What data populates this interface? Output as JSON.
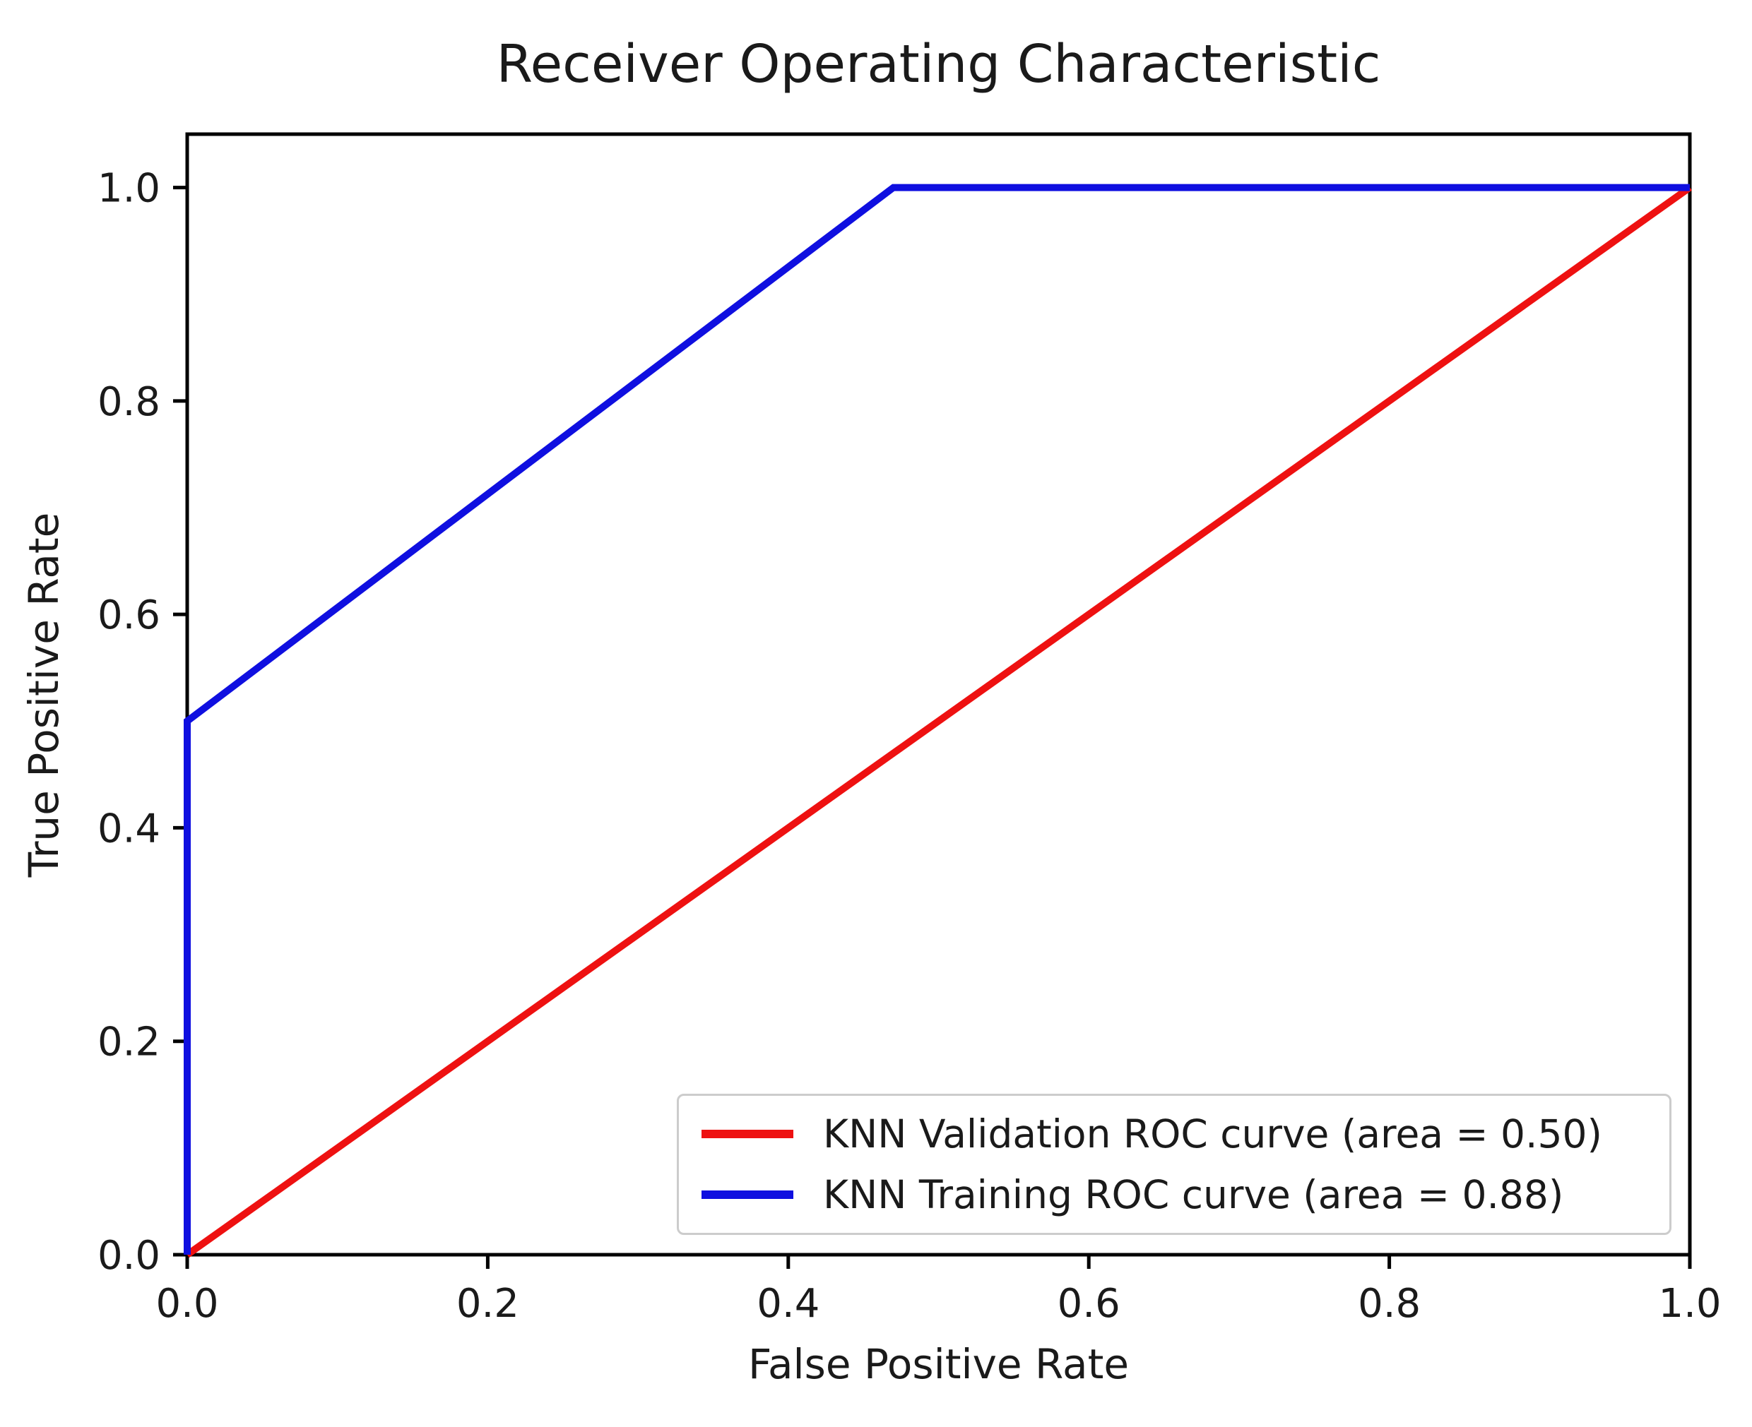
{
  "chart_data": {
    "type": "line",
    "title": "Receiver Operating Characteristic",
    "xlabel": "False Positive Rate",
    "ylabel": "True Positive Rate",
    "xlim": [
      0.0,
      1.0
    ],
    "ylim": [
      0.0,
      1.05
    ],
    "x_tick_values": [
      0.0,
      0.2,
      0.4,
      0.6,
      0.8,
      1.0
    ],
    "x_tick_labels": [
      "0.0",
      "0.2",
      "0.4",
      "0.6",
      "0.8",
      "1.0"
    ],
    "y_tick_values": [
      0.0,
      0.2,
      0.4,
      0.6,
      0.8,
      1.0
    ],
    "y_tick_labels": [
      "0.0",
      "0.2",
      "0.4",
      "0.6",
      "0.8",
      "1.0"
    ],
    "grid": false,
    "legend_position": "lower right",
    "series": [
      {
        "name": "KNN Validation ROC curve (area = 0.50)",
        "color": "#ee1111",
        "area": 0.5,
        "x": [
          0.0,
          1.0
        ],
        "y": [
          0.0,
          1.0
        ]
      },
      {
        "name": "KNN Training ROC curve (area = 0.88)",
        "color": "#0f0fe0",
        "area": 0.88,
        "x": [
          0.0,
          0.0,
          0.47,
          1.0
        ],
        "y": [
          0.0,
          0.5,
          1.0,
          1.0
        ]
      }
    ]
  },
  "colors": {
    "axis": "#000000",
    "tick_text": "#1a1a1a",
    "legend_border": "#cccccc",
    "background": "#ffffff"
  }
}
